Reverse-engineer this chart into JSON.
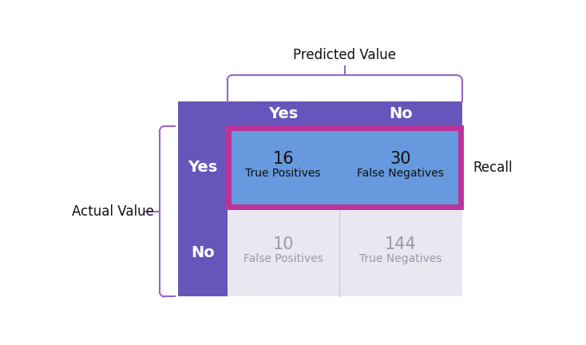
{
  "predicted_label": "Predicted Value",
  "actual_label": "Actual Value",
  "recall_label": "Recall",
  "col_headers": [
    "Yes",
    "No"
  ],
  "row_headers": [
    "Yes",
    "No"
  ],
  "cell_values": [
    [
      16,
      30
    ],
    [
      10,
      144
    ]
  ],
  "cell_labels": [
    [
      "True Positives",
      "False Negatives"
    ],
    [
      "False Positives",
      "True Negatives"
    ]
  ],
  "header_bg_color": "#6655bb",
  "top_row_cell_color": "#6699dd",
  "bottom_row_cell_color": "#e8e8f0",
  "row_label_bg_color": "#6655bb",
  "highlight_border_color": "#bb3399",
  "bracket_color": "#9966cc",
  "header_text_color": "#ffffff",
  "row_label_text_color": "#ffffff",
  "top_cell_text_color": "#111111",
  "bottom_cell_text_color": "#999aaa",
  "outer_label_text_color": "#111111",
  "background_color": "#ffffff",
  "fig_width": 7.34,
  "fig_height": 4.32
}
